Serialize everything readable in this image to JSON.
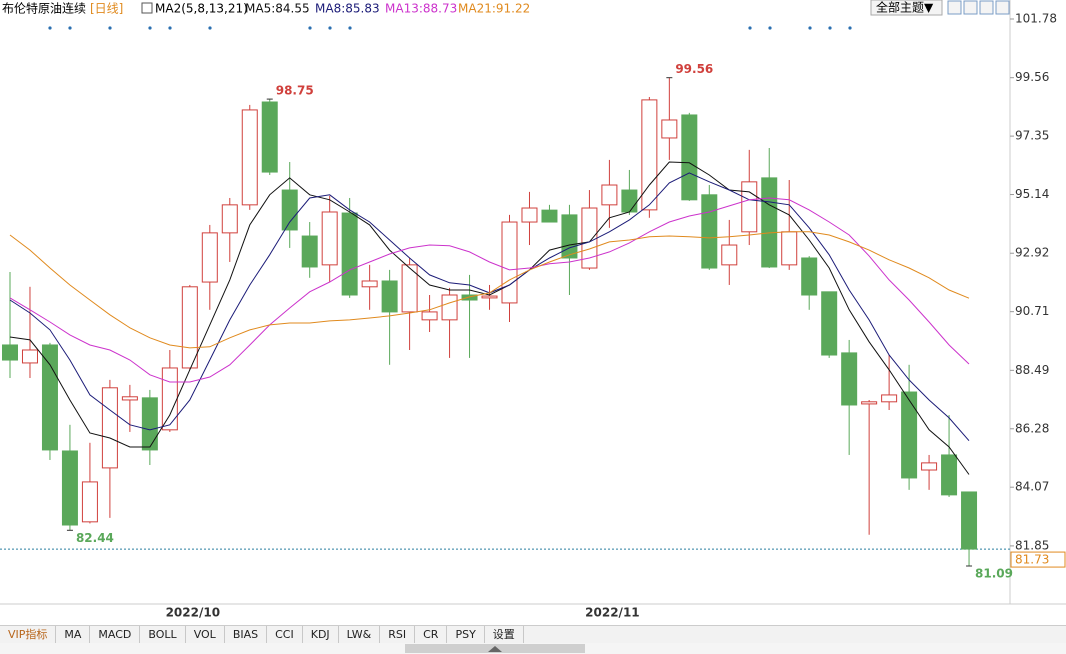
{
  "header": {
    "title": "布伦特原油连续",
    "period": "[日线]",
    "indicator": "MA2(5,8,13,21)"
  },
  "toolbar": {
    "theme_button": "全部主题▼"
  },
  "chart_data": {
    "type": "candlestick",
    "categories": [
      null,
      null,
      null,
      null,
      null,
      null,
      null,
      null,
      null,
      "2022/10",
      null,
      null,
      null,
      null,
      null,
      null,
      null,
      null,
      null,
      null,
      null,
      null,
      null,
      null,
      null,
      null,
      null,
      null,
      null,
      null,
      "2022/11",
      null,
      null,
      null,
      null,
      null,
      null,
      null,
      null,
      null,
      null,
      null,
      null,
      null,
      null,
      null,
      null,
      null,
      null
    ],
    "open": [
      89.45,
      88.77,
      89.45,
      85.44,
      82.76,
      84.8,
      87.37,
      87.45,
      86.24,
      88.58,
      91.83,
      93.69,
      94.75,
      98.64,
      95.31,
      93.57,
      92.48,
      94.44,
      91.65,
      91.87,
      90.7,
      90.4,
      90.4,
      91.34,
      91.23,
      91.04,
      94.1,
      94.55,
      94.37,
      92.36,
      94.75,
      95.31,
      94.56,
      97.28,
      98.15,
      95.13,
      92.48,
      93.73,
      95.77,
      92.48,
      92.74,
      91.46,
      89.15,
      87.22,
      87.3,
      87.67,
      84.72,
      85.29,
      83.89
    ],
    "high": [
      92.21,
      91.65,
      89.53,
      86.43,
      85.75,
      88.13,
      87.94,
      87.75,
      89.26,
      91.72,
      93.99,
      95.01,
      98.53,
      98.75,
      96.37,
      94.1,
      95.09,
      95.01,
      92.48,
      92.29,
      92.74,
      91.34,
      91.61,
      92.1,
      91.72,
      94.37,
      95.24,
      94.75,
      94.75,
      95.31,
      96.45,
      96.07,
      98.83,
      99.56,
      98.23,
      95.5,
      94.18,
      96.83,
      96.9,
      95.69,
      92.81,
      91.46,
      89.64,
      87.37,
      89.07,
      88.7,
      85.29,
      86.8,
      83.89
    ],
    "low": [
      88.2,
      88.2,
      85.1,
      82.44,
      82.7,
      82.91,
      86.16,
      84.91,
      86.16,
      88.51,
      90.78,
      92.59,
      94.56,
      95.88,
      93.12,
      91.99,
      91.83,
      91.23,
      90.78,
      88.7,
      89.26,
      89.94,
      88.96,
      88.96,
      90.78,
      90.32,
      93.23,
      94.1,
      91.34,
      92.29,
      93.88,
      94.37,
      94.26,
      96.45,
      94.9,
      92.29,
      91.72,
      93.23,
      92.36,
      92.29,
      90.78,
      88.96,
      85.29,
      82.27,
      86.99,
      83.97,
      83.97,
      83.7,
      81.09
    ],
    "close": [
      88.88,
      89.26,
      85.48,
      82.64,
      84.27,
      87.83,
      87.49,
      85.48,
      88.58,
      91.65,
      93.69,
      94.75,
      98.34,
      95.99,
      93.8,
      92.4,
      94.48,
      91.34,
      91.87,
      90.7,
      92.48,
      90.7,
      91.34,
      91.15,
      91.3,
      94.1,
      94.63,
      94.1,
      92.74,
      94.63,
      95.5,
      94.48,
      98.72,
      97.96,
      94.94,
      92.36,
      93.23,
      95.62,
      92.4,
      93.73,
      91.34,
      89.07,
      87.18,
      87.3,
      87.56,
      84.42,
      84.99,
      83.78,
      81.73
    ],
    "up_color": "#d0403c",
    "down_color": "#5aa85a",
    "last_price_color": "#e08a1e",
    "ylim": [
      79.69,
      102.12
    ],
    "yticks": [
      81.85,
      84.07,
      86.28,
      88.49,
      90.71,
      92.92,
      95.14,
      97.35,
      99.56,
      101.78
    ],
    "series": [
      {
        "name": "MA5:84.55",
        "color": "#111111",
        "values": [
          89.75,
          89.64,
          88.7,
          87.37,
          86.12,
          85.93,
          85.59,
          85.59,
          86.8,
          88.51,
          90.21,
          91.91,
          93.99,
          95.13,
          95.77,
          95.13,
          94.94,
          94.48,
          93.99,
          93.04,
          92.36,
          91.72,
          91.53,
          91.53,
          91.34,
          91.72,
          92.29,
          93.04,
          93.23,
          93.35,
          94.26,
          94.48,
          95.5,
          96.37,
          96.34,
          95.88,
          95.31,
          95.24,
          94.75,
          94.37,
          93.42,
          92.36,
          90.78,
          89.57,
          88.51,
          87.37,
          86.24,
          85.59,
          84.55
        ]
      },
      {
        "name": "MA8:85.83",
        "color": "#1c1c78",
        "values": [
          91.15,
          90.66,
          90.02,
          88.88,
          87.56,
          86.99,
          86.43,
          86.24,
          86.43,
          87.37,
          88.88,
          90.4,
          91.72,
          92.86,
          94.1,
          95.01,
          95.13,
          94.56,
          94.1,
          93.42,
          92.74,
          92.1,
          91.8,
          91.72,
          91.42,
          91.72,
          92.29,
          92.74,
          93.12,
          93.35,
          93.73,
          94.18,
          94.75,
          95.58,
          95.96,
          95.62,
          95.31,
          94.94,
          94.86,
          94.75,
          93.88,
          92.86,
          91.53,
          90.4,
          89.07,
          88.13,
          87.37,
          86.69,
          85.83
        ]
      },
      {
        "name": "MA13:88.73",
        "color": "#cc33cc",
        "values": [
          91.23,
          90.78,
          90.32,
          89.83,
          89.45,
          89.26,
          88.88,
          88.32,
          88.05,
          88.05,
          88.24,
          88.7,
          89.45,
          90.21,
          90.85,
          91.46,
          91.83,
          92.29,
          92.59,
          92.89,
          93.12,
          93.23,
          93.2,
          92.97,
          92.59,
          92.29,
          92.36,
          92.52,
          92.59,
          92.74,
          92.97,
          93.31,
          93.73,
          94.1,
          94.33,
          94.48,
          94.71,
          94.94,
          95.01,
          94.94,
          94.56,
          94.1,
          93.61,
          92.82,
          91.91,
          91.15,
          90.32,
          89.45,
          88.73
        ]
      },
      {
        "name": "MA21:91.22",
        "color": "#e08a1e",
        "values": [
          93.61,
          93.04,
          92.36,
          91.72,
          91.15,
          90.59,
          90.1,
          89.72,
          89.45,
          89.34,
          89.38,
          89.72,
          90.02,
          90.21,
          90.28,
          90.28,
          90.36,
          90.4,
          90.47,
          90.55,
          90.66,
          90.78,
          91.04,
          91.27,
          91.42,
          91.91,
          92.29,
          92.59,
          92.86,
          93.08,
          93.35,
          93.42,
          93.54,
          93.57,
          93.54,
          93.5,
          93.54,
          93.61,
          93.69,
          93.73,
          93.73,
          93.61,
          93.35,
          93.04,
          92.67,
          92.36,
          91.99,
          91.53,
          91.22
        ]
      }
    ]
  },
  "tabs": [
    "VIP指标",
    "MA",
    "MACD",
    "BOLL",
    "VOL",
    "BIAS",
    "CCI",
    "KDJ",
    "LW&",
    "RSI",
    "CR",
    "PSY",
    "设置"
  ]
}
